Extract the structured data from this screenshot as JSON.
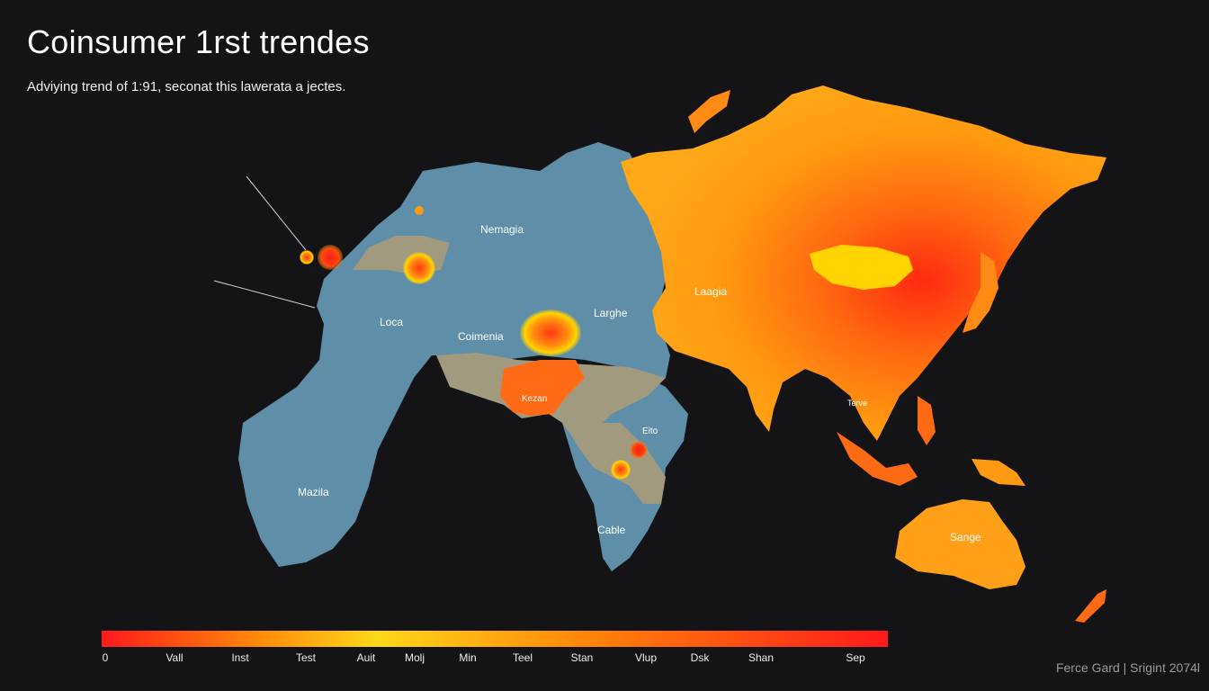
{
  "header": {
    "title": "Coinsumer 1rst trendes",
    "subtitle": "Adviying trend  of 1:91, seconat this lawerata a jectes."
  },
  "map": {
    "colors": {
      "cool_region": "#5f8fa8",
      "muted_region": "#a29a7e",
      "hot_orange": "#ff9d10",
      "hot_red": "#ff2a10",
      "hot_yellow": "#ffd400"
    },
    "labels": [
      {
        "id": "nemagia",
        "text": "Nemagia"
      },
      {
        "id": "loca",
        "text": "Loca"
      },
      {
        "id": "coimenia",
        "text": "Coimenia"
      },
      {
        "id": "larghe",
        "text": "Larghe"
      },
      {
        "id": "laagia",
        "text": "Laagia"
      },
      {
        "id": "kezan",
        "text": "Kezan"
      },
      {
        "id": "eito",
        "text": "Eito"
      },
      {
        "id": "mazila",
        "text": "Mazila"
      },
      {
        "id": "cable",
        "text": "Cable"
      },
      {
        "id": "terve",
        "text": "Terve"
      },
      {
        "id": "sange",
        "text": "Sange"
      }
    ]
  },
  "legend": {
    "gradient_stops": [
      "#ff1a1a",
      "#ff8a0a",
      "#ffd81a",
      "#ff8a0a",
      "#ff1a1a"
    ],
    "ticks": [
      "0",
      "Vall",
      "Inst",
      "Test",
      "Auit",
      "Molj",
      "Min",
      "Teel",
      "Stan",
      "Vlup",
      "Dsk",
      "Shan",
      "Sep"
    ]
  },
  "footer": {
    "credit": "Ferce Gard | Srigint 2074l"
  }
}
